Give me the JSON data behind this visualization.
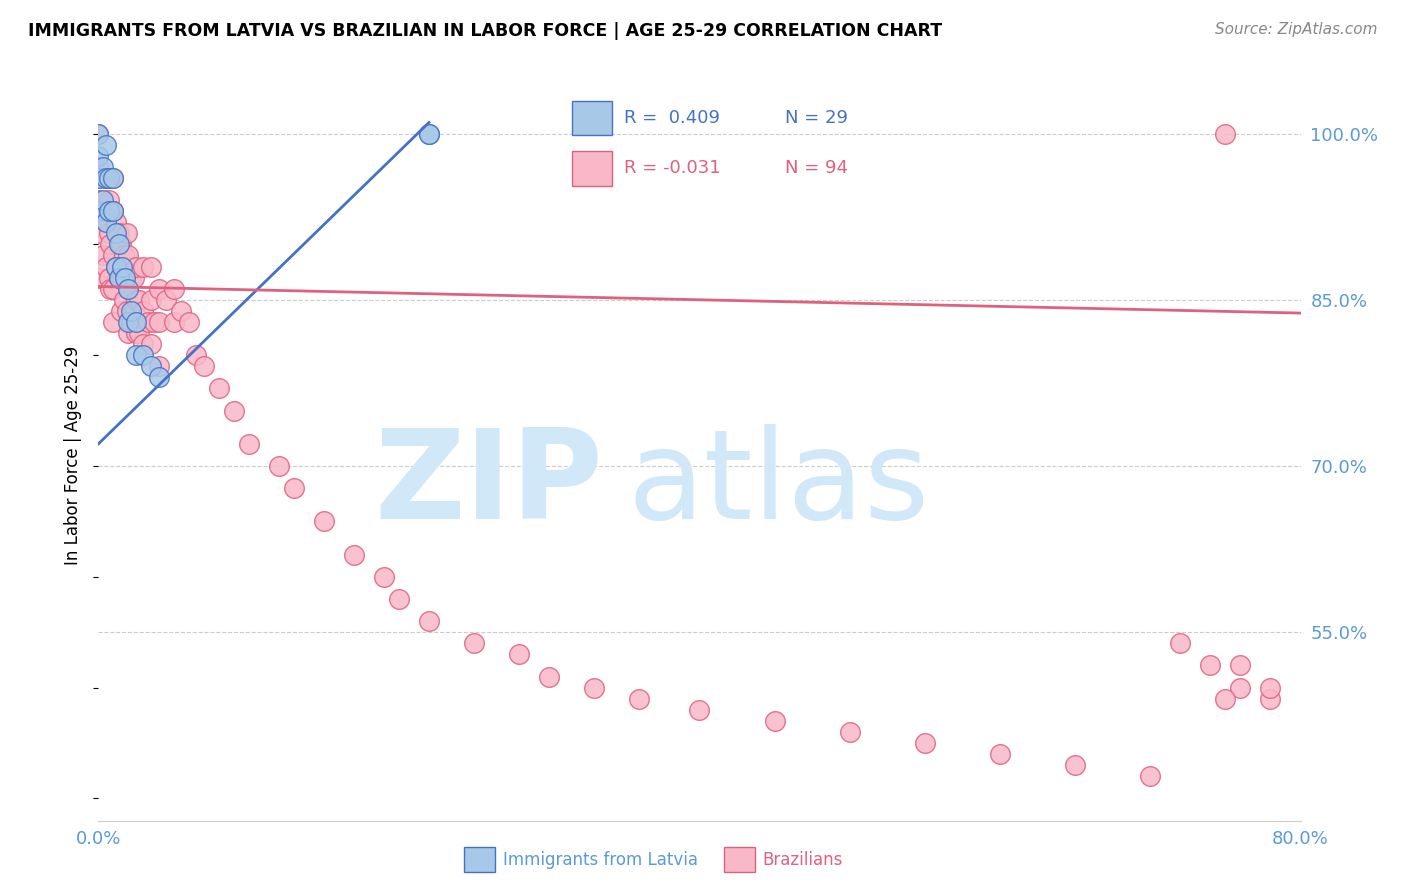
{
  "title": "IMMIGRANTS FROM LATVIA VS BRAZILIAN IN LABOR FORCE | AGE 25-29 CORRELATION CHART",
  "source": "Source: ZipAtlas.com",
  "ylabel": "In Labor Force | Age 25-29",
  "xlim": [
    0.0,
    0.8
  ],
  "ylim": [
    0.38,
    1.04
  ],
  "xticks": [
    0.0,
    0.1,
    0.2,
    0.3,
    0.4,
    0.5,
    0.6,
    0.7,
    0.8
  ],
  "xticklabels": [
    "0.0%",
    "",
    "",
    "",
    "",
    "",
    "",
    "",
    "80.0%"
  ],
  "yticks_right": [
    1.0,
    0.85,
    0.7,
    0.55
  ],
  "ytick_labels_right": [
    "100.0%",
    "85.0%",
    "70.0%",
    "55.0%"
  ],
  "legend_R_latvia": "R =  0.409",
  "legend_N_latvia": "N = 29",
  "legend_R_brazil": "R = -0.031",
  "legend_N_brazil": "N = 94",
  "color_latvia_face": "#a8c8e8",
  "color_latvia_edge": "#4472c4",
  "color_brazil_face": "#f8b8c8",
  "color_brazil_edge": "#e06080",
  "color_trendline_latvia": "#4472c4",
  "color_trendline_brazil": "#e06080",
  "color_axis_labels": "#5b9bd5",
  "watermark_color": "#d0e8f8",
  "trendline_latvia_x0": 0.0,
  "trendline_latvia_y0": 0.72,
  "trendline_latvia_x1": 0.22,
  "trendline_latvia_y1": 1.01,
  "trendline_brazil_x0": 0.0,
  "trendline_brazil_y0": 0.862,
  "trendline_brazil_x1": 0.8,
  "trendline_brazil_y1": 0.838,
  "latvia_x": [
    0.0,
    0.0,
    0.0,
    0.0,
    0.003,
    0.003,
    0.005,
    0.005,
    0.005,
    0.007,
    0.007,
    0.01,
    0.01,
    0.012,
    0.012,
    0.014,
    0.014,
    0.016,
    0.018,
    0.02,
    0.02,
    0.022,
    0.025,
    0.025,
    0.03,
    0.035,
    0.04,
    0.22,
    0.22
  ],
  "latvia_y": [
    1.0,
    0.98,
    0.96,
    0.93,
    0.97,
    0.94,
    0.99,
    0.96,
    0.92,
    0.96,
    0.93,
    0.96,
    0.93,
    0.91,
    0.88,
    0.9,
    0.87,
    0.88,
    0.87,
    0.86,
    0.83,
    0.84,
    0.83,
    0.8,
    0.8,
    0.79,
    0.78,
    1.0,
    1.0
  ],
  "brazil_x": [
    0.0,
    0.0,
    0.0,
    0.0,
    0.0,
    0.003,
    0.003,
    0.003,
    0.005,
    0.005,
    0.005,
    0.007,
    0.007,
    0.007,
    0.008,
    0.008,
    0.008,
    0.01,
    0.01,
    0.01,
    0.01,
    0.01,
    0.012,
    0.012,
    0.014,
    0.014,
    0.015,
    0.015,
    0.015,
    0.017,
    0.017,
    0.019,
    0.019,
    0.019,
    0.02,
    0.02,
    0.02,
    0.022,
    0.022,
    0.024,
    0.024,
    0.025,
    0.025,
    0.025,
    0.027,
    0.027,
    0.03,
    0.03,
    0.03,
    0.033,
    0.035,
    0.035,
    0.035,
    0.037,
    0.04,
    0.04,
    0.04,
    0.045,
    0.05,
    0.05,
    0.055,
    0.06,
    0.065,
    0.07,
    0.08,
    0.09,
    0.1,
    0.12,
    0.13,
    0.15,
    0.17,
    0.19,
    0.2,
    0.22,
    0.25,
    0.28,
    0.3,
    0.33,
    0.36,
    0.4,
    0.45,
    0.5,
    0.55,
    0.6,
    0.65,
    0.7,
    0.72,
    0.74,
    0.76,
    0.78,
    0.75,
    0.76,
    0.78,
    0.75
  ],
  "brazil_y": [
    1.0,
    0.97,
    0.94,
    0.91,
    0.87,
    0.96,
    0.93,
    0.89,
    0.96,
    0.92,
    0.88,
    0.94,
    0.91,
    0.87,
    0.93,
    0.9,
    0.86,
    0.96,
    0.93,
    0.89,
    0.86,
    0.83,
    0.92,
    0.88,
    0.91,
    0.87,
    0.9,
    0.87,
    0.84,
    0.89,
    0.85,
    0.91,
    0.88,
    0.84,
    0.89,
    0.86,
    0.82,
    0.87,
    0.83,
    0.87,
    0.84,
    0.88,
    0.85,
    0.82,
    0.85,
    0.82,
    0.88,
    0.84,
    0.81,
    0.83,
    0.88,
    0.85,
    0.81,
    0.83,
    0.86,
    0.83,
    0.79,
    0.85,
    0.86,
    0.83,
    0.84,
    0.83,
    0.8,
    0.79,
    0.77,
    0.75,
    0.72,
    0.7,
    0.68,
    0.65,
    0.62,
    0.6,
    0.58,
    0.56,
    0.54,
    0.53,
    0.51,
    0.5,
    0.49,
    0.48,
    0.47,
    0.46,
    0.45,
    0.44,
    0.43,
    0.42,
    0.54,
    0.52,
    0.5,
    0.49,
    1.0,
    0.52,
    0.5,
    0.49
  ]
}
